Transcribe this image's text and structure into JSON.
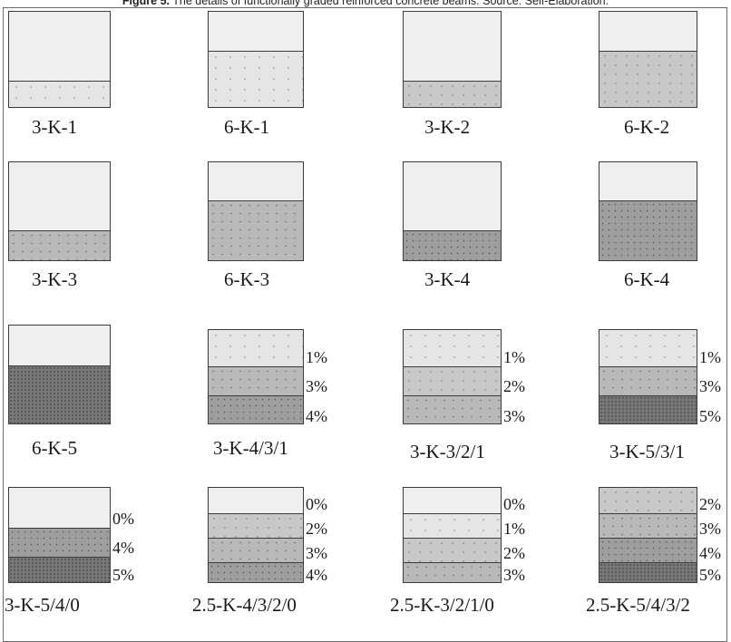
{
  "caption": {
    "lead": "Figure 5.",
    "text": " The details of functionally graded reinforced concrete beams. Source: Self-Elaboration."
  },
  "shades": {
    "0": "#efefef",
    "1": "#e5e5e5",
    "2": "#c8c8c8",
    "3": "#b9b9b9",
    "4": "#9e9e9e",
    "5": "#787878"
  },
  "dot_colors": {
    "0": "",
    "1": "#8a8a8a",
    "2": "#7a7a7a",
    "3": "#6a6a6a",
    "4": "#555555",
    "5": "#3a3a3a"
  },
  "beams": [
    {
      "name": "3-K-1",
      "layers": [
        {
          "level": "0"
        },
        {
          "level": "1"
        }
      ]
    },
    {
      "name": "6-K-1",
      "layers": [
        {
          "level": "0"
        },
        {
          "level": "1"
        }
      ]
    },
    {
      "name": "3-K-2",
      "layers": [
        {
          "level": "0"
        },
        {
          "level": "2"
        }
      ]
    },
    {
      "name": "6-K-2",
      "layers": [
        {
          "level": "0"
        },
        {
          "level": "2"
        }
      ]
    },
    {
      "name": "3-K-3",
      "layers": [
        {
          "level": "0"
        },
        {
          "level": "3"
        }
      ]
    },
    {
      "name": "6-K-3",
      "layers": [
        {
          "level": "0"
        },
        {
          "level": "3"
        }
      ]
    },
    {
      "name": "3-K-4",
      "layers": [
        {
          "level": "0"
        },
        {
          "level": "4"
        }
      ]
    },
    {
      "name": "6-K-4",
      "layers": [
        {
          "level": "0"
        },
        {
          "level": "4"
        }
      ]
    },
    {
      "name": "6-K-5",
      "layers": [
        {
          "level": "0"
        },
        {
          "level": "5"
        }
      ]
    },
    {
      "name": "3-K-4/3/1",
      "layers": [
        {
          "level": "1",
          "pct": "1%"
        },
        {
          "level": "3",
          "pct": "3%"
        },
        {
          "level": "4",
          "pct": "4%"
        }
      ]
    },
    {
      "name": "3-K-3/2/1",
      "layers": [
        {
          "level": "1",
          "pct": "1%"
        },
        {
          "level": "2",
          "pct": "2%"
        },
        {
          "level": "3",
          "pct": "3%"
        }
      ]
    },
    {
      "name": "3-K-5/3/1",
      "layers": [
        {
          "level": "1",
          "pct": "1%"
        },
        {
          "level": "3",
          "pct": "3%"
        },
        {
          "level": "5",
          "pct": "5%"
        }
      ]
    },
    {
      "name": "3-K-5/4/0",
      "layers": [
        {
          "level": "0",
          "pct": "0%"
        },
        {
          "level": "4",
          "pct": "4%"
        },
        {
          "level": "5",
          "pct": "5%"
        }
      ]
    },
    {
      "name": "2.5-K-4/3/2/0",
      "layers": [
        {
          "level": "0",
          "pct": "0%"
        },
        {
          "level": "2",
          "pct": "2%"
        },
        {
          "level": "3",
          "pct": "3%"
        },
        {
          "level": "4",
          "pct": "4%"
        }
      ]
    },
    {
      "name": "2.5-K-3/2/1/0",
      "layers": [
        {
          "level": "0",
          "pct": "0%"
        },
        {
          "level": "1",
          "pct": "1%"
        },
        {
          "level": "2",
          "pct": "2%"
        },
        {
          "level": "3",
          "pct": "3%"
        }
      ]
    },
    {
      "name": "2.5-K-5/4/3/2",
      "layers": [
        {
          "level": "2",
          "pct": "2%"
        },
        {
          "level": "3",
          "pct": "3%"
        },
        {
          "level": "4",
          "pct": "4%"
        },
        {
          "level": "5",
          "pct": "5%"
        }
      ]
    }
  ]
}
